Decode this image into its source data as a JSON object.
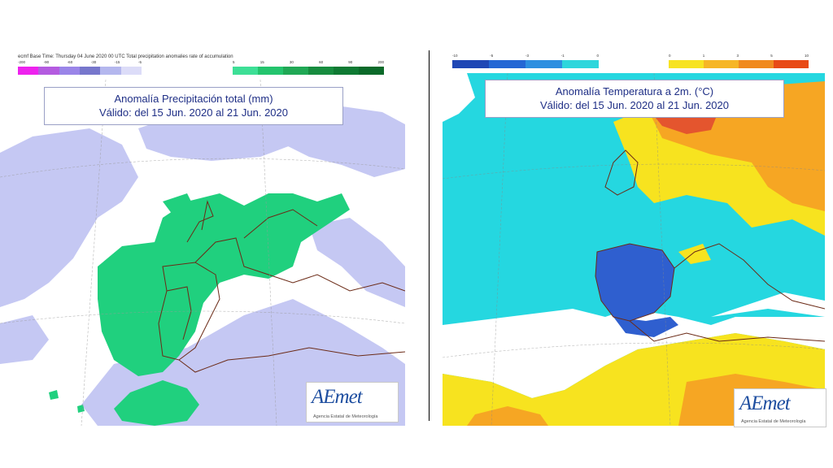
{
  "left": {
    "header": "ecmf  Base Time: Thursday 04 June 2020 00 UTC Total precipitation anomalies rate of accumulation",
    "colorbar_neg_ticks": [
      "-200",
      "-90",
      "-60",
      "-30",
      "-15",
      "-5"
    ],
    "colorbar_pos_ticks": [
      "5",
      "15",
      "30",
      "60",
      "90",
      "200"
    ],
    "colorbar_neg_colors": [
      "#ee22ee",
      "#b45be0",
      "#9a85e8",
      "#7777cc",
      "#b4b7ee",
      "#dcdcf8"
    ],
    "colorbar_pos_colors": [
      "#3ddf96",
      "#24c46d",
      "#20a855",
      "#178c3f",
      "#0f7a33",
      "#0b6a2a"
    ],
    "title_line1": "Anomalía Precipitación total (mm)",
    "title_line2": "Válido: del 15 Jun. 2020 al 21 Jun. 2020",
    "logo_text": "AEmet",
    "logo_subtext": "Agencia Estatal de Meteorología",
    "colors": {
      "background": "#ffffff",
      "negative_anomaly": "#c5c8f3",
      "positive_anomaly": "#20d07e",
      "coast": "#6b2a16"
    }
  },
  "right": {
    "colorbar_neg_ticks": [
      "-10",
      "-5",
      "-3",
      "-1",
      "0"
    ],
    "colorbar_pos_ticks": [
      "0",
      "1",
      "3",
      "5",
      "10"
    ],
    "colorbar_neg_colors": [
      "#1f47b5",
      "#2467d4",
      "#2d8fe0",
      "#2ed6dc"
    ],
    "colorbar_pos_colors": [
      "#f7e322",
      "#f6b626",
      "#f08a1f",
      "#e84a16"
    ],
    "title_line1": "Anomalía Temperatura a 2m. (°C)",
    "title_line2": "Válido: del 15 Jun. 2020 al 21 Jun. 2020",
    "logo_text": "AEmet",
    "logo_subtext": "Agencia Estatal de Meteorología",
    "colors": {
      "cold_strong": "#2f5fcf",
      "cold": "#25d7e0",
      "neutral": "#ffffff",
      "warm": "#f7e31f",
      "warmer": "#f6a623",
      "hot": "#e4552e"
    }
  }
}
